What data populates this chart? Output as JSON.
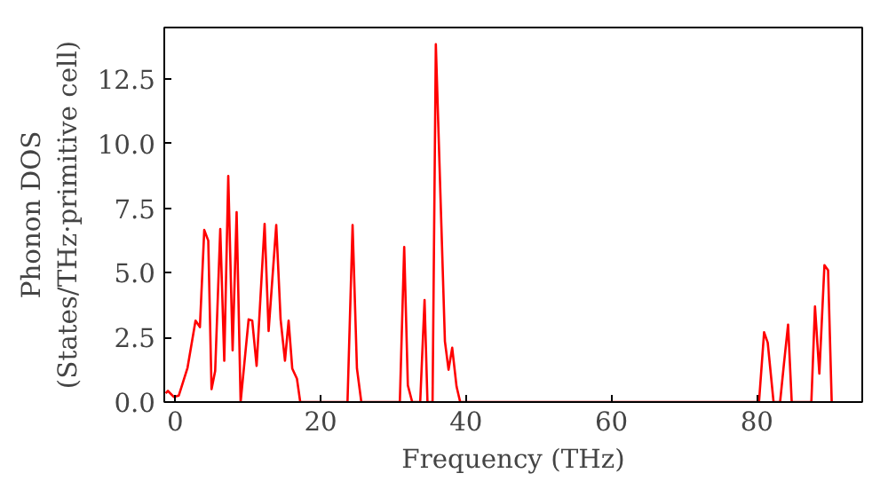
{
  "chart_data": {
    "type": "line",
    "xlabel": "Frequency (THz)",
    "ylabel": "Phonon DOS\n(States/THz·primitive cell)",
    "xlim": [
      -1.5,
      94.5
    ],
    "ylim": [
      0,
      14.5
    ],
    "xticks": [
      0,
      20,
      40,
      60,
      80
    ],
    "yticks": [
      {
        "value": 0,
        "label": "0.0"
      },
      {
        "value": 2.5,
        "label": "2.5"
      },
      {
        "value": 5,
        "label": "5.0"
      },
      {
        "value": 7.5,
        "label": "7.5"
      },
      {
        "value": 10,
        "label": "10.0"
      },
      {
        "value": 12.5,
        "label": "12.5"
      }
    ],
    "grid": false,
    "marker": "none",
    "line_style": "solid",
    "series": [
      {
        "color": "#ff0000",
        "x": [
          -1.3,
          -1.0,
          -0.2,
          0.5,
          1.7,
          2.8,
          3.4,
          4.0,
          4.55,
          5.0,
          5.5,
          6.2,
          6.75,
          7.3,
          7.9,
          8.45,
          9.0,
          10.1,
          10.6,
          11.2,
          12.3,
          12.85,
          13.9,
          14.5,
          15.1,
          15.6,
          16.1,
          16.75,
          17.2,
          23.7,
          24.4,
          25.0,
          25.6,
          30.9,
          31.5,
          32.0,
          32.6,
          33.7,
          34.3,
          34.7,
          35.4,
          35.85,
          37.1,
          37.6,
          38.1,
          38.7,
          39.2,
          80.3,
          81.0,
          81.5,
          82.3,
          83.2,
          83.7,
          84.3,
          84.8,
          87.5,
          88.0,
          88.6,
          89.3,
          89.8,
          90.3
        ],
        "values": [
          0.34,
          0.43,
          0.2,
          0.25,
          1.33,
          3.15,
          2.9,
          6.66,
          6.25,
          0.5,
          1.2,
          6.7,
          1.6,
          8.75,
          2.0,
          7.35,
          0,
          3.2,
          3.15,
          1.4,
          6.9,
          2.75,
          6.85,
          3.2,
          1.6,
          3.15,
          1.3,
          0.9,
          0,
          0,
          6.85,
          1.3,
          0,
          0,
          6.0,
          0.65,
          0,
          0,
          3.95,
          0,
          0,
          13.85,
          2.35,
          1.25,
          2.1,
          0.6,
          0,
          0,
          2.7,
          2.3,
          0,
          0,
          1.4,
          3.0,
          0,
          0,
          3.7,
          1.1,
          5.3,
          5.1,
          0
        ]
      }
    ]
  }
}
